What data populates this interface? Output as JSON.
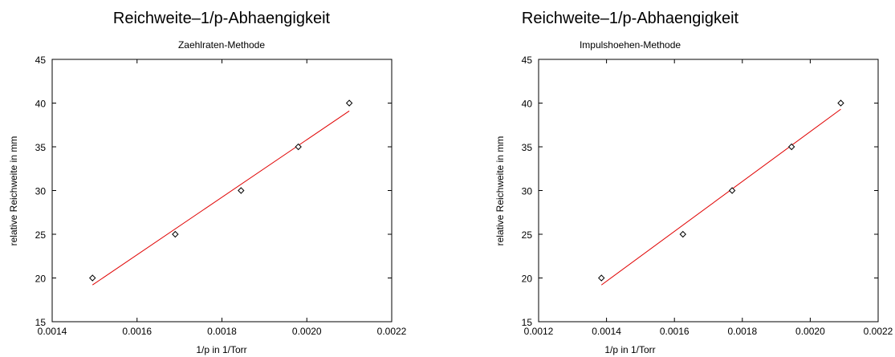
{
  "chart_data": [
    {
      "type": "scatter",
      "title": "Reichweite–1/p-Abhaengigkeit",
      "subtitle": "Zaehlraten-Methode",
      "xlabel": "1/p in 1/Torr",
      "ylabel": "relative Reichweite in mm",
      "xlim": [
        0.0014,
        0.0022
      ],
      "ylim": [
        15,
        45
      ],
      "xticks": [
        0.0014,
        0.0016,
        0.0018,
        0.002,
        0.0022
      ],
      "xtick_labels": [
        "0.0014",
        "0.0016",
        "0.0018",
        "0.0020",
        "0.0022"
      ],
      "yticks": [
        15,
        20,
        25,
        30,
        35,
        40,
        45
      ],
      "ytick_labels": [
        "15",
        "20",
        "25",
        "30",
        "35",
        "40",
        "45"
      ],
      "grid": false,
      "points": {
        "x": [
          0.001495,
          0.00169,
          0.001845,
          0.00198,
          0.0021
        ],
        "y": [
          20,
          25,
          30,
          35,
          40
        ]
      },
      "fit_line": {
        "x": [
          0.001495,
          0.0021
        ],
        "y": [
          19.2,
          39.1
        ],
        "color": "#e00000"
      },
      "marker": "diamond",
      "marker_color": "#000000"
    },
    {
      "type": "scatter",
      "title": "Reichweite–1/p-Abhaengigkeit",
      "subtitle": "Impulshoehen-Methode",
      "xlabel": "1/p in 1/Torr",
      "ylabel": "relative Reichweite in mm",
      "xlim": [
        0.0012,
        0.0022
      ],
      "ylim": [
        15,
        45
      ],
      "xticks": [
        0.0012,
        0.0014,
        0.0016,
        0.0018,
        0.002,
        0.0022
      ],
      "xtick_labels": [
        "0.0012",
        "0.0014",
        "0.0016",
        "0.0018",
        "0.0020",
        "0.0022"
      ],
      "yticks": [
        15,
        20,
        25,
        30,
        35,
        40,
        45
      ],
      "ytick_labels": [
        "15",
        "20",
        "25",
        "30",
        "35",
        "40",
        "45"
      ],
      "grid": false,
      "points": {
        "x": [
          0.001385,
          0.001625,
          0.00177,
          0.001945,
          0.00209
        ],
        "y": [
          20,
          25,
          30,
          35,
          40
        ]
      },
      "fit_line": {
        "x": [
          0.001385,
          0.00209
        ],
        "y": [
          19.2,
          39.3
        ],
        "color": "#e00000"
      },
      "marker": "diamond",
      "marker_color": "#000000"
    }
  ]
}
